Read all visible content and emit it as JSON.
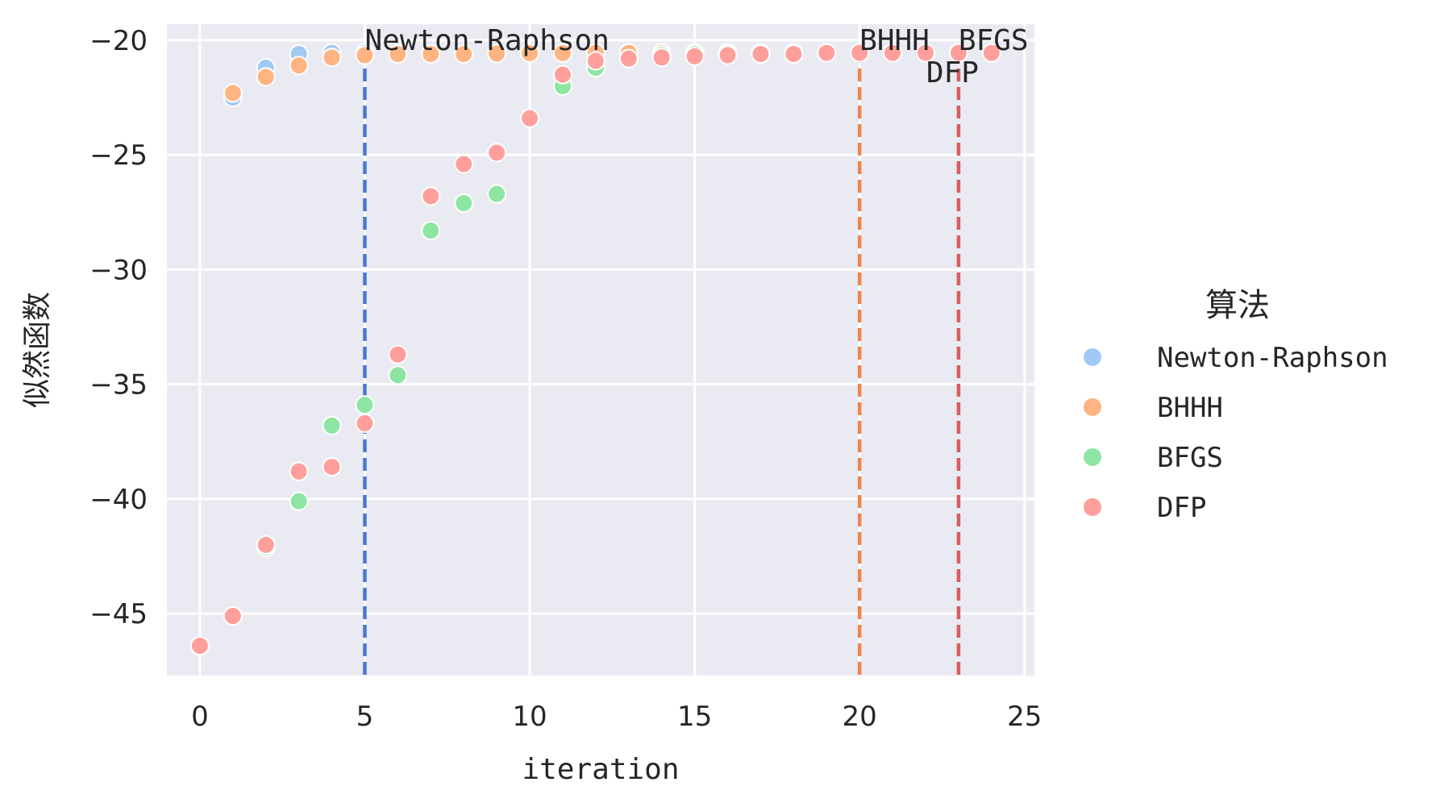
{
  "chart_data": {
    "type": "scatter",
    "title": "",
    "xlabel": "iteration",
    "ylabel": "似然函数",
    "xlim": [
      -1,
      25.3
    ],
    "ylim": [
      -47.7,
      -19.3
    ],
    "xticks": [
      0,
      5,
      10,
      15,
      20,
      25
    ],
    "xtick_labels": [
      "0",
      "5",
      "10",
      "15",
      "20",
      "25"
    ],
    "yticks": [
      -20,
      -25,
      -30,
      -35,
      -40,
      -45
    ],
    "ytick_labels": [
      "−20",
      "−25",
      "−30",
      "−35",
      "−40",
      "−45"
    ],
    "grid": true,
    "legend": {
      "title": "算法",
      "placement": "outside-right"
    },
    "series": [
      {
        "name": "Newton-Raphson",
        "color": "#a1c9f4",
        "x": [
          0,
          1,
          2,
          3,
          4,
          5
        ],
        "y": [
          -46.4,
          -22.5,
          -21.2,
          -20.6,
          -20.55,
          -20.55
        ]
      },
      {
        "name": "BHHH",
        "color": "#ffb482",
        "x": [
          0,
          1,
          2,
          3,
          4,
          5,
          6,
          7,
          8,
          9,
          10,
          11,
          12,
          13,
          14,
          15,
          16,
          17,
          18,
          19,
          20
        ],
        "y": [
          -46.4,
          -22.3,
          -21.6,
          -21.1,
          -20.75,
          -20.65,
          -20.6,
          -20.6,
          -20.6,
          -20.58,
          -20.56,
          -20.56,
          -20.55,
          -20.55,
          -20.55,
          -20.55,
          -20.55,
          -20.55,
          -20.55,
          -20.55,
          -20.55
        ]
      },
      {
        "name": "BFGS",
        "color": "#8de5a1",
        "x": [
          0,
          1,
          2,
          3,
          4,
          5,
          6,
          7,
          8,
          9,
          10,
          11,
          12,
          13,
          14,
          15,
          16,
          17,
          18,
          19,
          20,
          21,
          22,
          23
        ],
        "y": [
          -46.4,
          -45.1,
          -42.1,
          -40.1,
          -36.8,
          -35.9,
          -34.6,
          -28.3,
          -27.1,
          -26.7,
          -23.4,
          -22.0,
          -21.2,
          -20.8,
          -20.65,
          -20.6,
          -20.6,
          -20.6,
          -20.6,
          -20.55,
          -20.55,
          -20.55,
          -20.55,
          -20.55
        ]
      },
      {
        "name": "DFP",
        "color": "#ff9f9b",
        "x": [
          0,
          1,
          2,
          3,
          4,
          5,
          6,
          7,
          8,
          9,
          10,
          11,
          12,
          13,
          14,
          15,
          16,
          17,
          18,
          19,
          20,
          21,
          22,
          23,
          24
        ],
        "y": [
          -46.4,
          -45.1,
          -42.0,
          -38.8,
          -38.6,
          -36.7,
          -33.7,
          -26.8,
          -25.4,
          -24.9,
          -23.4,
          -21.5,
          -20.9,
          -20.8,
          -20.75,
          -20.7,
          -20.65,
          -20.6,
          -20.6,
          -20.55,
          -20.55,
          -20.55,
          -20.55,
          -20.55,
          -20.55
        ]
      }
    ],
    "vlines": [
      {
        "x": 5,
        "label": "Newton-Raphson",
        "color": "#4878d0"
      },
      {
        "x": 20,
        "label": "BHHH",
        "color": "#ee854a"
      },
      {
        "x": 23,
        "label": "BFGS",
        "color": "#d65f5f"
      },
      {
        "x": 23,
        "label": "DFP",
        "color": "#d65f5f"
      }
    ]
  }
}
